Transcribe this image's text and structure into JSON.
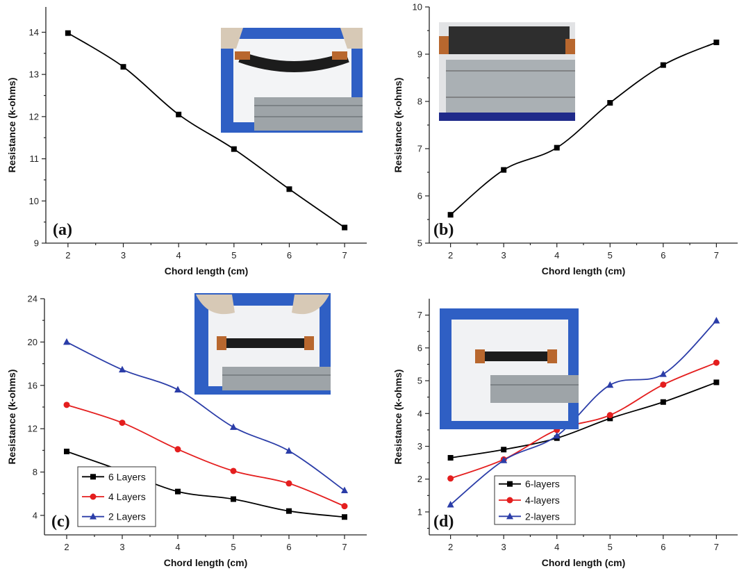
{
  "chart_data": [
    {
      "panel": "(a)",
      "type": "line",
      "x": [
        2,
        3,
        4,
        5,
        6,
        7
      ],
      "series": [
        {
          "name": "",
          "color": "#000000",
          "marker": "square",
          "values": [
            13.98,
            13.18,
            12.05,
            11.23,
            10.28,
            9.37
          ]
        }
      ],
      "xlabel": "Chord length (cm)",
      "ylabel": "Resistance (k-ohms)",
      "xlim": [
        1.6,
        7.4
      ],
      "ylim": [
        9,
        14.6
      ],
      "yticks": [
        9,
        10,
        11,
        12,
        13,
        14
      ],
      "xticks": [
        2,
        3,
        4,
        5,
        6,
        7
      ],
      "legend": null,
      "inset": "photo of a bent carbon strip on white paper over a metal ruler"
    },
    {
      "panel": "(b)",
      "type": "line",
      "x": [
        2,
        3,
        4,
        5,
        6,
        7
      ],
      "series": [
        {
          "name": "",
          "color": "#000000",
          "marker": "square",
          "values": [
            5.6,
            6.55,
            7.02,
            7.97,
            8.77,
            9.25
          ]
        }
      ],
      "xlabel": "Chord length (cm)",
      "ylabel": "Resistance (k-ohms)",
      "xlim": [
        1.6,
        7.4
      ],
      "ylim": [
        5,
        10
      ],
      "yticks": [
        5,
        6,
        7,
        8,
        9,
        10
      ],
      "xticks": [
        2,
        3,
        4,
        5,
        6,
        7
      ],
      "legend": null,
      "inset": "photo of a carbon strip over a metal ruler"
    },
    {
      "panel": "(c)",
      "type": "line",
      "x": [
        2,
        3,
        4,
        5,
        6,
        7
      ],
      "series": [
        {
          "name": "6 Layers",
          "color": "#000000",
          "marker": "square",
          "values": [
            9.9,
            8.1,
            6.2,
            5.5,
            4.4,
            3.85
          ]
        },
        {
          "name": "4 Layers",
          "color": "#e41e1e",
          "marker": "circle",
          "values": [
            14.2,
            12.55,
            10.1,
            8.1,
            6.95,
            4.85
          ]
        },
        {
          "name": "2 Layers",
          "color": "#2b3da8",
          "marker": "triangle",
          "values": [
            20.0,
            17.45,
            15.6,
            12.15,
            9.95,
            6.3
          ]
        }
      ],
      "xlabel": "Chord length (cm)",
      "ylabel": "Resistance (k-ohms)",
      "xlim": [
        1.6,
        7.4
      ],
      "ylim": [
        2.2,
        24
      ],
      "yticks": [
        4,
        8,
        12,
        16,
        20,
        24
      ],
      "xticks": [
        2,
        3,
        4,
        5,
        6,
        7
      ],
      "legend": "bottom-left",
      "inset": "photo of a carbon strip held by gloved fingers over a metal ruler"
    },
    {
      "panel": "(d)",
      "type": "line",
      "x": [
        2,
        3,
        4,
        5,
        6,
        7
      ],
      "series": [
        {
          "name": "6-layers",
          "color": "#000000",
          "marker": "square",
          "values": [
            2.65,
            2.9,
            3.25,
            3.85,
            4.35,
            4.95
          ]
        },
        {
          "name": "4-layers",
          "color": "#e41e1e",
          "marker": "circle",
          "values": [
            2.02,
            2.6,
            3.5,
            3.95,
            4.88,
            5.55
          ]
        },
        {
          "name": "2-layers",
          "color": "#2b3da8",
          "marker": "triangle",
          "values": [
            1.22,
            2.57,
            3.32,
            4.87,
            5.2,
            6.83
          ]
        }
      ],
      "xlabel": "Chord length (cm)",
      "ylabel": "Resistance (k-ohms)",
      "xlim": [
        1.6,
        7.4
      ],
      "ylim": [
        0.3,
        7.5
      ],
      "yticks": [
        1,
        2,
        3,
        4,
        5,
        6,
        7
      ],
      "xticks": [
        2,
        3,
        4,
        5,
        6,
        7
      ],
      "legend": "bottom-left",
      "inset": "photo of a carbon strip on white paper over a metal ruler"
    }
  ]
}
